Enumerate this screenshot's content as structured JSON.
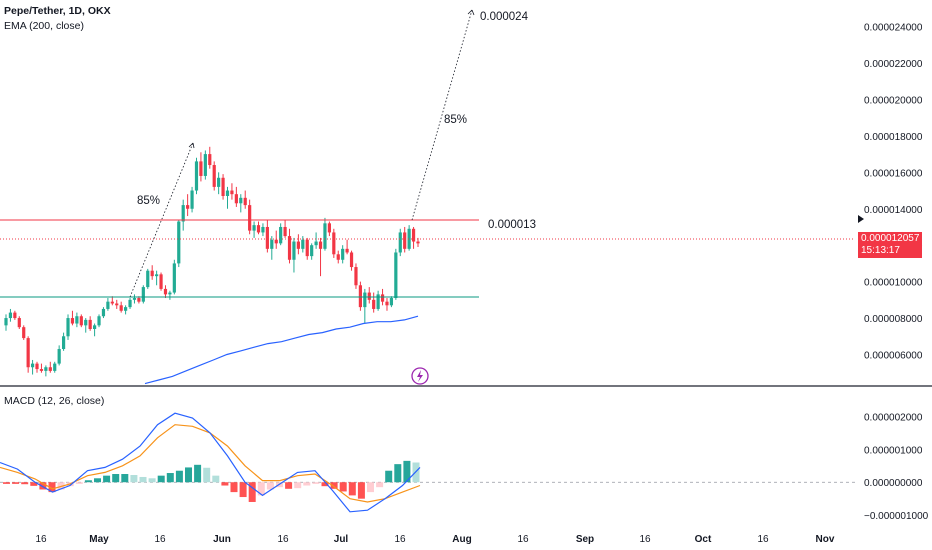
{
  "header": {
    "symbol": "Pepe/Tether, 1D, OKX",
    "ema_label": "EMA (200, close)",
    "macd_label": "MACD (12, 26, close)"
  },
  "last_price": {
    "value": "0.000012057",
    "countdown": "15:13:17"
  },
  "annotations": {
    "target_label": "0.000024",
    "resistance_label": "0.000013",
    "first_move_pct": "85%",
    "projected_move_pct": "85%"
  },
  "colors": {
    "up": "#22ab94",
    "down": "#f23645",
    "ema": "#2962ff",
    "macd": "#2962ff",
    "signal": "#f7931a",
    "resistance": "#f23645",
    "support": "#089981",
    "last_price": "#f23645"
  },
  "icons": {
    "alert": "lightning-icon",
    "last-price-marker": "triangle-right-icon"
  },
  "chart_data": [
    {
      "type": "candlestick",
      "title": "Pepe/Tether, 1D, OKX",
      "x_ticks": [
        "16",
        "May",
        "16",
        "Jun",
        "16",
        "Jul",
        "16",
        "Aug",
        "16",
        "Sep",
        "16",
        "Oct",
        "16",
        "Nov"
      ],
      "y_ticks": [
        "0.000024000",
        "0.000022000",
        "0.000020000",
        "0.000018000",
        "0.000016000",
        "0.000014000",
        "0.000012000",
        "0.000010000",
        "0.000008000",
        "0.000006000"
      ],
      "ylim": [
        4.6e-06,
        2.48e-05
      ],
      "levels": {
        "resistance": 1.3e-05,
        "support": 9.2e-06,
        "last": 1.2057e-05
      },
      "ohlc": [
        [
          7.6e-06,
          8.2e-06,
          7.3e-06,
          8e-06
        ],
        [
          8e-06,
          8.5e-06,
          7.8e-06,
          8.3e-06
        ],
        [
          8.3e-06,
          8.4e-06,
          7.9e-06,
          8e-06
        ],
        [
          8e-06,
          8.1e-06,
          7.4e-06,
          7.5e-06
        ],
        [
          7.5e-06,
          7.6e-06,
          6.8e-06,
          6.9e-06
        ],
        [
          6.9e-06,
          7e-06,
          5e-06,
          5.3e-06
        ],
        [
          5.3e-06,
          5.7e-06,
          4.9e-06,
          5.5e-06
        ],
        [
          5.5e-06,
          5.6e-06,
          5e-06,
          5.2e-06
        ],
        [
          5.2e-06,
          5.5e-06,
          5e-06,
          5.1e-06
        ],
        [
          5.1e-06,
          5.4e-06,
          4.8e-06,
          5.3e-06
        ],
        [
          5.3e-06,
          5.6e-06,
          5e-06,
          5.1e-06
        ],
        [
          5.1e-06,
          5.6e-06,
          5e-06,
          5.5e-06
        ],
        [
          5.5e-06,
          6.5e-06,
          5.4e-06,
          6.3e-06
        ],
        [
          6.3e-06,
          7.2e-06,
          6.2e-06,
          7e-06
        ],
        [
          7e-06,
          8.2e-06,
          6.8e-06,
          8e-06
        ],
        [
          8e-06,
          8.4e-06,
          7.6e-06,
          7.7e-06
        ],
        [
          7.7e-06,
          8.3e-06,
          7.5e-06,
          8.1e-06
        ],
        [
          8.1e-06,
          8.2e-06,
          7.5e-06,
          7.6e-06
        ],
        [
          7.6e-06,
          8e-06,
          7.2e-06,
          7.9e-06
        ],
        [
          7.9e-06,
          8.1e-06,
          7.3e-06,
          7.4e-06
        ],
        [
          7.4e-06,
          7.7e-06,
          7e-06,
          7.6e-06
        ],
        [
          7.6e-06,
          8.2e-06,
          7.5e-06,
          8.1e-06
        ],
        [
          8.1e-06,
          8.6e-06,
          8e-06,
          8.5e-06
        ],
        [
          8.5e-06,
          9.1e-06,
          8.4e-06,
          8.9e-06
        ],
        [
          8.9e-06,
          9.2e-06,
          8.7e-06,
          8.8e-06
        ],
        [
          8.8e-06,
          9e-06,
          8.5e-06,
          8.7e-06
        ],
        [
          8.7e-06,
          8.9e-06,
          8.3e-06,
          8.4e-06
        ],
        [
          8.4e-06,
          8.7e-06,
          8.2e-06,
          8.6e-06
        ],
        [
          8.6e-06,
          9.1e-06,
          8.5e-06,
          9e-06
        ],
        [
          9e-06,
          9.3e-06,
          8.8e-06,
          9.1e-06
        ],
        [
          9.1e-06,
          9.2e-06,
          8.8e-06,
          8.9e-06
        ],
        [
          8.9e-06,
          9.8e-06,
          8.8e-06,
          9.7e-06
        ],
        [
          9.7e-06,
          1.07e-05,
          9.6e-06,
          1.06e-05
        ],
        [
          1.06e-05,
          1.09e-05,
          1.01e-05,
          1.03e-05
        ],
        [
          1.03e-05,
          1.06e-05,
          9.8e-06,
          1.04e-05
        ],
        [
          1.04e-05,
          1.05e-05,
          9.5e-06,
          9.6e-06
        ],
        [
          9.6e-06,
          9.8e-06,
          9.1e-06,
          9.3e-06
        ],
        [
          9.3e-06,
          9.5e-06,
          9e-06,
          9.4e-06
        ],
        [
          9.4e-06,
          1.12e-05,
          9.3e-06,
          1.1e-05
        ],
        [
          1.1e-05,
          1.34e-05,
          1.08e-05,
          1.33e-05
        ],
        [
          1.33e-05,
          1.45e-05,
          1.28e-05,
          1.42e-05
        ],
        [
          1.42e-05,
          1.48e-05,
          1.36e-05,
          1.4e-05
        ],
        [
          1.4e-05,
          1.52e-05,
          1.38e-05,
          1.5e-05
        ],
        [
          1.5e-05,
          1.68e-05,
          1.48e-05,
          1.66e-05
        ],
        [
          1.66e-05,
          1.71e-05,
          1.55e-05,
          1.58e-05
        ],
        [
          1.58e-05,
          1.72e-05,
          1.56e-05,
          1.7e-05
        ],
        [
          1.7e-05,
          1.74e-05,
          1.62e-05,
          1.64e-05
        ],
        [
          1.64e-05,
          1.66e-05,
          1.5e-05,
          1.52e-05
        ],
        [
          1.52e-05,
          1.6e-05,
          1.48e-05,
          1.57e-05
        ],
        [
          1.57e-05,
          1.59e-05,
          1.45e-05,
          1.47e-05
        ],
        [
          1.47e-05,
          1.52e-05,
          1.4e-05,
          1.5e-05
        ],
        [
          1.5e-05,
          1.54e-05,
          1.45e-05,
          1.48e-05
        ],
        [
          1.48e-05,
          1.52e-05,
          1.41e-05,
          1.43e-05
        ],
        [
          1.43e-05,
          1.48e-05,
          1.38e-05,
          1.46e-05
        ],
        [
          1.46e-05,
          1.5e-05,
          1.4e-05,
          1.42e-05
        ],
        [
          1.42e-05,
          1.45e-05,
          1.26e-05,
          1.28e-05
        ],
        [
          1.28e-05,
          1.33e-05,
          1.24e-05,
          1.31e-05
        ],
        [
          1.31e-05,
          1.33e-05,
          1.26e-05,
          1.27e-05
        ],
        [
          1.27e-05,
          1.32e-05,
          1.25e-05,
          1.3e-05
        ],
        [
          1.3e-05,
          1.34e-05,
          1.16e-05,
          1.18e-05
        ],
        [
          1.18e-05,
          1.25e-05,
          1.12e-05,
          1.23e-05
        ],
        [
          1.23e-05,
          1.28e-05,
          1.18e-05,
          1.21e-05
        ],
        [
          1.21e-05,
          1.32e-05,
          1.2e-05,
          1.3e-05
        ],
        [
          1.3e-05,
          1.34e-05,
          1.24e-05,
          1.25e-05
        ],
        [
          1.25e-05,
          1.29e-05,
          1.1e-05,
          1.12e-05
        ],
        [
          1.12e-05,
          1.24e-05,
          1.05e-05,
          1.22e-05
        ],
        [
          1.22e-05,
          1.26e-05,
          1.15e-05,
          1.18e-05
        ],
        [
          1.18e-05,
          1.25e-05,
          1.16e-05,
          1.23e-05
        ],
        [
          1.23e-05,
          1.24e-05,
          1.12e-05,
          1.14e-05
        ],
        [
          1.14e-05,
          1.21e-05,
          1.12e-05,
          1.2e-05
        ],
        [
          1.2e-05,
          1.27e-05,
          1.18e-05,
          1.22e-05
        ],
        [
          1.22e-05,
          1.24e-05,
          1.03e-05,
          1.18e-05
        ],
        [
          1.18e-05,
          1.35e-05,
          1.17e-05,
          1.32e-05
        ],
        [
          1.32e-05,
          1.33e-05,
          1.25e-05,
          1.27e-05
        ],
        [
          1.27e-05,
          1.29e-05,
          1.13e-05,
          1.15e-05
        ],
        [
          1.15e-05,
          1.17e-05,
          1.1e-05,
          1.12e-05
        ],
        [
          1.12e-05,
          1.2e-05,
          1.1e-05,
          1.18e-05
        ],
        [
          1.18e-05,
          1.23e-05,
          1.15e-05,
          1.16e-05
        ],
        [
          1.16e-05,
          1.17e-05,
          1.06e-05,
          1.08e-05
        ],
        [
          1.08e-05,
          1.1e-05,
          9.6e-06,
          9.8e-06
        ],
        [
          9.8e-06,
          1e-05,
          8.4e-06,
          8.6e-06
        ],
        [
          8.6e-06,
          9.6e-06,
          7.7e-06,
          9.4e-06
        ],
        [
          9.4e-06,
          9.7e-06,
          8.8e-06,
          9e-06
        ],
        [
          9e-06,
          9.4e-06,
          8.3e-06,
          8.5e-06
        ],
        [
          8.5e-06,
          9.5e-06,
          8.4e-06,
          9.3e-06
        ],
        [
          9.3e-06,
          9.6e-06,
          8.7e-06,
          8.9e-06
        ],
        [
          8.9e-06,
          9.1e-06,
          8.4e-06,
          8.7e-06
        ],
        [
          8.7e-06,
          9.2e-06,
          8.6e-06,
          9.1e-06
        ],
        [
          9.1e-06,
          1.18e-05,
          9e-06,
          1.16e-05
        ],
        [
          1.16e-05,
          1.29e-05,
          1.14e-05,
          1.27e-05
        ],
        [
          1.27e-05,
          1.3e-05,
          1.16e-05,
          1.18e-05
        ],
        [
          1.18e-05,
          1.31e-05,
          1.17e-05,
          1.29e-05
        ],
        [
          1.29e-05,
          1.3e-05,
          1.18e-05,
          1.22e-05
        ],
        [
          1.22e-05,
          1.24e-05,
          1.19e-05,
          1.21e-05
        ]
      ],
      "ema": [
        4.4e-06,
        4.6e-06,
        4.8e-06,
        5.1e-06,
        5.4e-06,
        5.7e-06,
        6e-06,
        6.2e-06,
        6.4e-06,
        6.6e-06,
        6.7e-06,
        6.9e-06,
        7.1e-06,
        7.2e-06,
        7.4e-06,
        7.5e-06,
        7.7e-06,
        7.8e-06,
        7.8e-06,
        7.9e-06,
        8.1e-06
      ]
    },
    {
      "type": "macd",
      "title": "MACD (12, 26, close)",
      "y_ticks": [
        "0.000002000",
        "0.000001000",
        "0.000000000",
        "−0.000001000"
      ],
      "ylim": [
        -1.3e-06,
        2.5e-06
      ],
      "histogram": [
        -5e-08,
        -5e-08,
        -6e-08,
        -1.1e-07,
        -2.2e-07,
        -3e-07,
        -2.2e-07,
        -1.2e-07,
        -5e-08,
        6e-08,
        1.2e-07,
        2e-07,
        2.5e-07,
        2.5e-07,
        2.2e-07,
        1.6e-07,
        1.2e-07,
        2e-07,
        2.8e-07,
        3.5e-07,
        4.5e-07,
        5.3e-07,
        4.4e-07,
        2e-07,
        -1e-07,
        -3e-07,
        -4.5e-07,
        -6e-07,
        -4e-07,
        -2.2e-07,
        -1.5e-07,
        -2e-07,
        -1.8e-07,
        -1e-07,
        -5e-08,
        -1.2e-07,
        -2e-07,
        -2.8e-07,
        -4e-07,
        -5e-07,
        -3e-07,
        -1.5e-07,
        3.5e-07,
        5.5e-07,
        6.5e-07,
        6e-07
      ],
      "macd": [
        6e-07,
        4e-07,
        0.0,
        -3e-07,
        -1e-07,
        3.5e-07,
        4.5e-07,
        7e-07,
        1.1e-06,
        1.75e-06,
        2.1e-06,
        1.95e-06,
        1.5e-06,
        8e-07,
        0.0,
        -4e-07,
        -5e-08,
        3e-07,
        3.5e-07,
        -2.5e-07,
        -9e-07,
        -8.5e-07,
        -5e-07,
        -1e-07,
        4.5e-07
      ],
      "signal": [
        4.5e-07,
        3e-07,
        1e-07,
        -2e-07,
        -5e-08,
        2e-07,
        3e-07,
        5e-07,
        8e-07,
        1.35e-06,
        1.75e-06,
        1.7e-06,
        1.5e-06,
        1.1e-06,
        5e-07,
        5e-08,
        5e-08,
        2e-07,
        2.5e-07,
        -1e-07,
        -5e-07,
        -6e-07,
        -5e-07,
        -3e-07,
        -1e-07
      ]
    }
  ]
}
